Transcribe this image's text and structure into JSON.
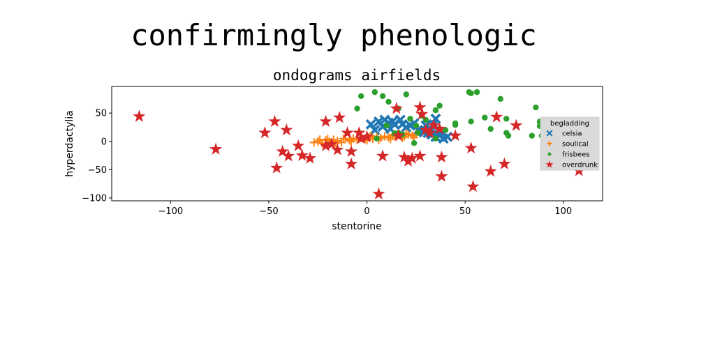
{
  "figure": {
    "supertitle": "confirmingly phenologic"
  },
  "chart_data": {
    "type": "scatter",
    "title": "ondograms airfields",
    "xlabel": "stentorine",
    "ylabel": "hyperdactylia",
    "xlim": [
      -130,
      120
    ],
    "ylim": [
      -105,
      97
    ],
    "xticks": [
      -100,
      -50,
      0,
      50,
      100
    ],
    "yticks": [
      -100,
      -50,
      0,
      50
    ],
    "grid": false,
    "legend": {
      "title": "begladding",
      "placement": "right"
    },
    "series": [
      {
        "name": "celsia",
        "marker": "x-filled",
        "color": "#1f77b4",
        "points": [
          [
            2,
            30
          ],
          [
            6,
            35
          ],
          [
            9,
            38
          ],
          [
            11,
            33
          ],
          [
            14,
            30
          ],
          [
            13,
            35
          ],
          [
            17,
            38
          ],
          [
            18,
            30
          ],
          [
            20,
            25
          ],
          [
            22,
            28
          ],
          [
            26,
            20
          ],
          [
            29,
            16
          ],
          [
            31,
            15
          ],
          [
            33,
            20
          ],
          [
            34,
            30
          ],
          [
            35,
            40
          ],
          [
            33,
            12
          ],
          [
            35,
            8
          ],
          [
            37,
            10
          ],
          [
            39,
            5
          ],
          [
            41,
            8
          ],
          [
            38,
            15
          ],
          [
            30,
            28
          ],
          [
            24,
            32
          ],
          [
            8,
            26
          ],
          [
            4,
            20
          ],
          [
            12,
            22
          ]
        ]
      },
      {
        "name": "soulical",
        "marker": "plus",
        "color": "#ff7f0e",
        "points": [
          [
            -27,
            -2
          ],
          [
            -25,
            0
          ],
          [
            -23,
            -3
          ],
          [
            -21,
            2
          ],
          [
            -19,
            -1
          ],
          [
            -17,
            3
          ],
          [
            -15,
            1
          ],
          [
            -13,
            -2
          ],
          [
            -11,
            4
          ],
          [
            -9,
            2
          ],
          [
            -7,
            5
          ],
          [
            -5,
            3
          ],
          [
            -3,
            6
          ],
          [
            -1,
            4
          ],
          [
            1,
            7
          ],
          [
            3,
            5
          ],
          [
            5,
            8
          ],
          [
            7,
            6
          ],
          [
            9,
            9
          ],
          [
            11,
            7
          ],
          [
            13,
            10
          ],
          [
            15,
            8
          ],
          [
            17,
            11
          ],
          [
            19,
            9
          ],
          [
            21,
            12
          ],
          [
            23,
            10
          ],
          [
            25,
            13
          ],
          [
            -20,
            4
          ],
          [
            -16,
            -3
          ],
          [
            -8,
            0
          ],
          [
            0,
            2
          ],
          [
            6,
            3
          ],
          [
            12,
            4
          ],
          [
            18,
            6
          ],
          [
            24,
            7
          ],
          [
            -24,
            3
          ],
          [
            -12,
            5
          ],
          [
            2,
            10
          ],
          [
            14,
            12
          ],
          [
            20,
            14
          ]
        ]
      },
      {
        "name": "frisbees",
        "marker": "circle",
        "color": "#2ca02c",
        "points": [
          [
            -5,
            58
          ],
          [
            -3,
            80
          ],
          [
            4,
            87
          ],
          [
            8,
            80
          ],
          [
            11,
            70
          ],
          [
            16,
            58
          ],
          [
            20,
            83
          ],
          [
            22,
            40
          ],
          [
            25,
            28
          ],
          [
            26,
            15
          ],
          [
            28,
            45
          ],
          [
            30,
            38
          ],
          [
            35,
            55
          ],
          [
            37,
            63
          ],
          [
            40,
            20
          ],
          [
            45,
            32
          ],
          [
            45,
            29
          ],
          [
            52,
            87
          ],
          [
            53,
            85
          ],
          [
            56,
            87
          ],
          [
            53,
            35
          ],
          [
            60,
            42
          ],
          [
            63,
            22
          ],
          [
            68,
            75
          ],
          [
            71,
            40
          ],
          [
            71,
            15
          ],
          [
            72,
            10
          ],
          [
            84,
            10
          ],
          [
            86,
            60
          ],
          [
            88,
            35
          ],
          [
            88,
            27
          ],
          [
            89,
            10
          ],
          [
            14,
            14
          ],
          [
            16,
            15
          ],
          [
            18,
            12
          ],
          [
            5,
            5
          ],
          [
            10,
            28
          ],
          [
            24,
            -3
          ],
          [
            35,
            5
          ]
        ]
      },
      {
        "name": "overdrunk",
        "marker": "star",
        "color": "#d62728",
        "points": [
          [
            -116,
            44
          ],
          [
            -77,
            -14
          ],
          [
            -52,
            15
          ],
          [
            -47,
            35
          ],
          [
            -46,
            -47
          ],
          [
            -43,
            -18
          ],
          [
            -41,
            20
          ],
          [
            -40,
            -26
          ],
          [
            -35,
            -8
          ],
          [
            -33,
            -25
          ],
          [
            -29,
            -30
          ],
          [
            -21,
            -8
          ],
          [
            -21,
            35
          ],
          [
            -18,
            -5
          ],
          [
            -15,
            -15
          ],
          [
            -14,
            42
          ],
          [
            -10,
            15
          ],
          [
            -8,
            -18
          ],
          [
            -8,
            -40
          ],
          [
            -4,
            15
          ],
          [
            -3,
            5
          ],
          [
            0,
            8
          ],
          [
            6,
            -93
          ],
          [
            8,
            -26
          ],
          [
            15,
            58
          ],
          [
            16,
            10
          ],
          [
            19,
            -28
          ],
          [
            21,
            -35
          ],
          [
            23,
            -30
          ],
          [
            27,
            -26
          ],
          [
            27,
            60
          ],
          [
            28,
            48
          ],
          [
            30,
            20
          ],
          [
            32,
            15
          ],
          [
            34,
            28
          ],
          [
            37,
            22
          ],
          [
            38,
            -28
          ],
          [
            38,
            -62
          ],
          [
            45,
            10
          ],
          [
            53,
            -12
          ],
          [
            54,
            -80
          ],
          [
            63,
            -53
          ],
          [
            66,
            43
          ],
          [
            70,
            -40
          ],
          [
            76,
            28
          ],
          [
            108,
            -52
          ]
        ]
      }
    ]
  }
}
